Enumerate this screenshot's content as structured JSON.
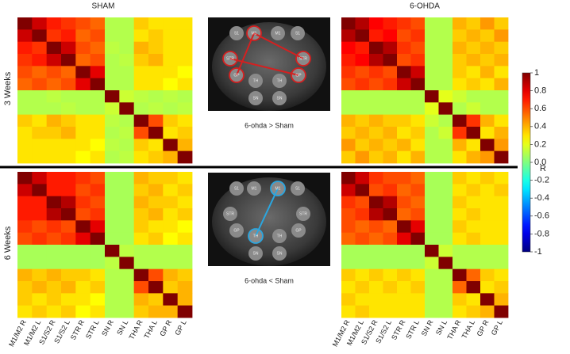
{
  "column_titles": [
    "SHAM",
    "6-OHDA"
  ],
  "row_labels": [
    "3 Weeks",
    "6 Weeks"
  ],
  "regions": [
    "M1/M2 R",
    "M1/M2 L",
    "S1/S2 R",
    "S1/S2 L",
    "STR R",
    "STR L",
    "SN R",
    "SN L",
    "THA R",
    "THA L",
    "GP R",
    "GP L"
  ],
  "chart_data": [
    {
      "type": "heatmap",
      "colormap": "jet",
      "zlim": [
        -1,
        1
      ],
      "values": [
        [
          1,
          0.85,
          0.7,
          0.65,
          0.6,
          0.55,
          0.1,
          0.1,
          0.35,
          0.3,
          0.3,
          0.3
        ],
        [
          0.85,
          1,
          0.65,
          0.7,
          0.55,
          0.6,
          0.1,
          0.1,
          0.3,
          0.35,
          0.3,
          0.3
        ],
        [
          0.7,
          0.65,
          1,
          0.85,
          0.6,
          0.55,
          0.12,
          0.1,
          0.4,
          0.35,
          0.3,
          0.3
        ],
        [
          0.65,
          0.7,
          0.85,
          1,
          0.55,
          0.6,
          0.1,
          0.12,
          0.35,
          0.4,
          0.3,
          0.3
        ],
        [
          0.6,
          0.55,
          0.6,
          0.55,
          1,
          0.8,
          0.1,
          0.1,
          0.3,
          0.3,
          0.3,
          0.25
        ],
        [
          0.55,
          0.6,
          0.55,
          0.6,
          0.8,
          1,
          0.1,
          0.1,
          0.3,
          0.3,
          0.25,
          0.3
        ],
        [
          0.1,
          0.1,
          0.12,
          0.1,
          0.1,
          0.1,
          1,
          0.15,
          0.12,
          0.1,
          0.12,
          0.1
        ],
        [
          0.1,
          0.1,
          0.1,
          0.12,
          0.1,
          0.1,
          0.15,
          1,
          0.1,
          0.12,
          0.1,
          0.12
        ],
        [
          0.35,
          0.3,
          0.4,
          0.35,
          0.3,
          0.3,
          0.12,
          0.1,
          1,
          0.6,
          0.35,
          0.3
        ],
        [
          0.3,
          0.35,
          0.35,
          0.4,
          0.3,
          0.3,
          0.1,
          0.12,
          0.6,
          1,
          0.3,
          0.35
        ],
        [
          0.3,
          0.3,
          0.3,
          0.3,
          0.3,
          0.25,
          0.12,
          0.1,
          0.35,
          0.3,
          1,
          0.4
        ],
        [
          0.3,
          0.3,
          0.3,
          0.3,
          0.25,
          0.3,
          0.1,
          0.12,
          0.3,
          0.35,
          0.4,
          1
        ]
      ]
    },
    {
      "type": "heatmap",
      "colormap": "jet",
      "zlim": [
        -1,
        1
      ],
      "values": [
        [
          1,
          0.9,
          0.75,
          0.7,
          0.65,
          0.6,
          0.1,
          0.1,
          0.4,
          0.35,
          0.45,
          0.35
        ],
        [
          0.9,
          1,
          0.7,
          0.75,
          0.6,
          0.65,
          0.1,
          0.1,
          0.35,
          0.4,
          0.35,
          0.45
        ],
        [
          0.75,
          0.7,
          1,
          0.9,
          0.65,
          0.6,
          0.1,
          0.1,
          0.4,
          0.35,
          0.4,
          0.35
        ],
        [
          0.7,
          0.75,
          0.9,
          1,
          0.6,
          0.65,
          0.1,
          0.1,
          0.35,
          0.4,
          0.35,
          0.4
        ],
        [
          0.65,
          0.6,
          0.65,
          0.6,
          1,
          0.85,
          0.1,
          0.1,
          0.35,
          0.3,
          0.4,
          0.3
        ],
        [
          0.6,
          0.65,
          0.6,
          0.65,
          0.85,
          1,
          0.1,
          0.1,
          0.3,
          0.35,
          0.3,
          0.4
        ],
        [
          0.1,
          0.1,
          0.1,
          0.1,
          0.1,
          0.1,
          1,
          0.2,
          0.15,
          0.1,
          0.1,
          0.1
        ],
        [
          0.1,
          0.1,
          0.1,
          0.1,
          0.1,
          0.1,
          0.2,
          1,
          0.1,
          0.15,
          0.1,
          0.1
        ],
        [
          0.4,
          0.35,
          0.4,
          0.35,
          0.35,
          0.3,
          0.15,
          0.1,
          1,
          0.65,
          0.4,
          0.3
        ],
        [
          0.35,
          0.4,
          0.35,
          0.4,
          0.3,
          0.35,
          0.1,
          0.15,
          0.65,
          1,
          0.3,
          0.4
        ],
        [
          0.45,
          0.35,
          0.4,
          0.35,
          0.4,
          0.3,
          0.1,
          0.1,
          0.4,
          0.3,
          1,
          0.45
        ],
        [
          0.35,
          0.45,
          0.35,
          0.4,
          0.3,
          0.4,
          0.1,
          0.1,
          0.3,
          0.4,
          0.45,
          1
        ]
      ]
    },
    {
      "type": "heatmap",
      "colormap": "jet",
      "zlim": [
        -1,
        1
      ],
      "values": [
        [
          1,
          0.85,
          0.7,
          0.7,
          0.65,
          0.6,
          0.08,
          0.08,
          0.4,
          0.35,
          0.35,
          0.3
        ],
        [
          0.85,
          1,
          0.7,
          0.7,
          0.6,
          0.65,
          0.08,
          0.08,
          0.35,
          0.4,
          0.3,
          0.35
        ],
        [
          0.7,
          0.7,
          1,
          0.9,
          0.65,
          0.6,
          0.08,
          0.08,
          0.4,
          0.35,
          0.35,
          0.3
        ],
        [
          0.7,
          0.7,
          0.9,
          1,
          0.6,
          0.65,
          0.08,
          0.08,
          0.35,
          0.4,
          0.3,
          0.35
        ],
        [
          0.65,
          0.6,
          0.65,
          0.6,
          1,
          0.8,
          0.08,
          0.08,
          0.35,
          0.3,
          0.3,
          0.25
        ],
        [
          0.6,
          0.65,
          0.6,
          0.65,
          0.8,
          1,
          0.08,
          0.08,
          0.3,
          0.35,
          0.25,
          0.3
        ],
        [
          0.08,
          0.08,
          0.08,
          0.08,
          0.08,
          0.08,
          1,
          0.12,
          0.1,
          0.1,
          0.1,
          0.1
        ],
        [
          0.08,
          0.08,
          0.08,
          0.08,
          0.08,
          0.08,
          0.12,
          1,
          0.1,
          0.1,
          0.1,
          0.1
        ],
        [
          0.4,
          0.35,
          0.4,
          0.35,
          0.35,
          0.3,
          0.1,
          0.1,
          1,
          0.6,
          0.4,
          0.35
        ],
        [
          0.35,
          0.4,
          0.35,
          0.4,
          0.3,
          0.35,
          0.1,
          0.1,
          0.6,
          1,
          0.35,
          0.4
        ],
        [
          0.35,
          0.3,
          0.35,
          0.3,
          0.3,
          0.25,
          0.1,
          0.1,
          0.4,
          0.35,
          1,
          0.4
        ],
        [
          0.3,
          0.35,
          0.3,
          0.35,
          0.25,
          0.3,
          0.1,
          0.1,
          0.35,
          0.4,
          0.4,
          1
        ]
      ]
    },
    {
      "type": "heatmap",
      "colormap": "jet",
      "zlim": [
        -1,
        1
      ],
      "values": [
        [
          1,
          0.85,
          0.65,
          0.6,
          0.6,
          0.55,
          0.08,
          0.08,
          0.35,
          0.3,
          0.35,
          0.3
        ],
        [
          0.85,
          1,
          0.6,
          0.65,
          0.55,
          0.6,
          0.08,
          0.08,
          0.3,
          0.35,
          0.3,
          0.35
        ],
        [
          0.65,
          0.6,
          1,
          0.9,
          0.6,
          0.55,
          0.08,
          0.08,
          0.35,
          0.3,
          0.3,
          0.3
        ],
        [
          0.6,
          0.65,
          0.9,
          1,
          0.55,
          0.6,
          0.08,
          0.08,
          0.3,
          0.35,
          0.3,
          0.3
        ],
        [
          0.6,
          0.55,
          0.6,
          0.55,
          1,
          0.8,
          0.08,
          0.08,
          0.35,
          0.3,
          0.3,
          0.3
        ],
        [
          0.55,
          0.6,
          0.55,
          0.6,
          0.8,
          1,
          0.08,
          0.08,
          0.3,
          0.35,
          0.3,
          0.3
        ],
        [
          0.08,
          0.08,
          0.08,
          0.08,
          0.08,
          0.08,
          1,
          0.15,
          0.1,
          0.1,
          0.1,
          0.1
        ],
        [
          0.08,
          0.08,
          0.08,
          0.08,
          0.08,
          0.08,
          0.15,
          1,
          0.1,
          0.1,
          0.1,
          0.1
        ],
        [
          0.35,
          0.3,
          0.35,
          0.3,
          0.35,
          0.3,
          0.1,
          0.1,
          1,
          0.55,
          0.35,
          0.3
        ],
        [
          0.3,
          0.35,
          0.3,
          0.35,
          0.3,
          0.35,
          0.1,
          0.1,
          0.55,
          1,
          0.3,
          0.35
        ],
        [
          0.35,
          0.3,
          0.3,
          0.3,
          0.3,
          0.3,
          0.1,
          0.1,
          0.35,
          0.3,
          1,
          0.4
        ],
        [
          0.3,
          0.35,
          0.3,
          0.3,
          0.3,
          0.3,
          0.1,
          0.1,
          0.3,
          0.35,
          0.4,
          1
        ]
      ]
    }
  ],
  "colorbar": {
    "colormap": "jet",
    "lim": [
      -1,
      1
    ],
    "label": "R",
    "ticks": [
      1,
      0.8,
      0.6,
      0.4,
      0.2,
      {
        "value": 0,
        "label": "0.0"
      },
      -0.2,
      -0.4,
      -0.6,
      -0.8,
      -1
    ]
  },
  "brain_panels": [
    {
      "caption": "6-ohda > Sham",
      "nodes": [
        "S1",
        "M1",
        "M1",
        "S1",
        "STR",
        "STR",
        "GP",
        "TH",
        "TH",
        "GP",
        "SN",
        "SN"
      ]
    },
    {
      "caption": "6-ohda < Sham",
      "nodes": [
        "S1",
        "M1",
        "M1",
        "S1",
        "STR",
        "STR",
        "GP",
        "TH",
        "TH",
        "GP",
        "SN",
        "SN"
      ]
    }
  ]
}
